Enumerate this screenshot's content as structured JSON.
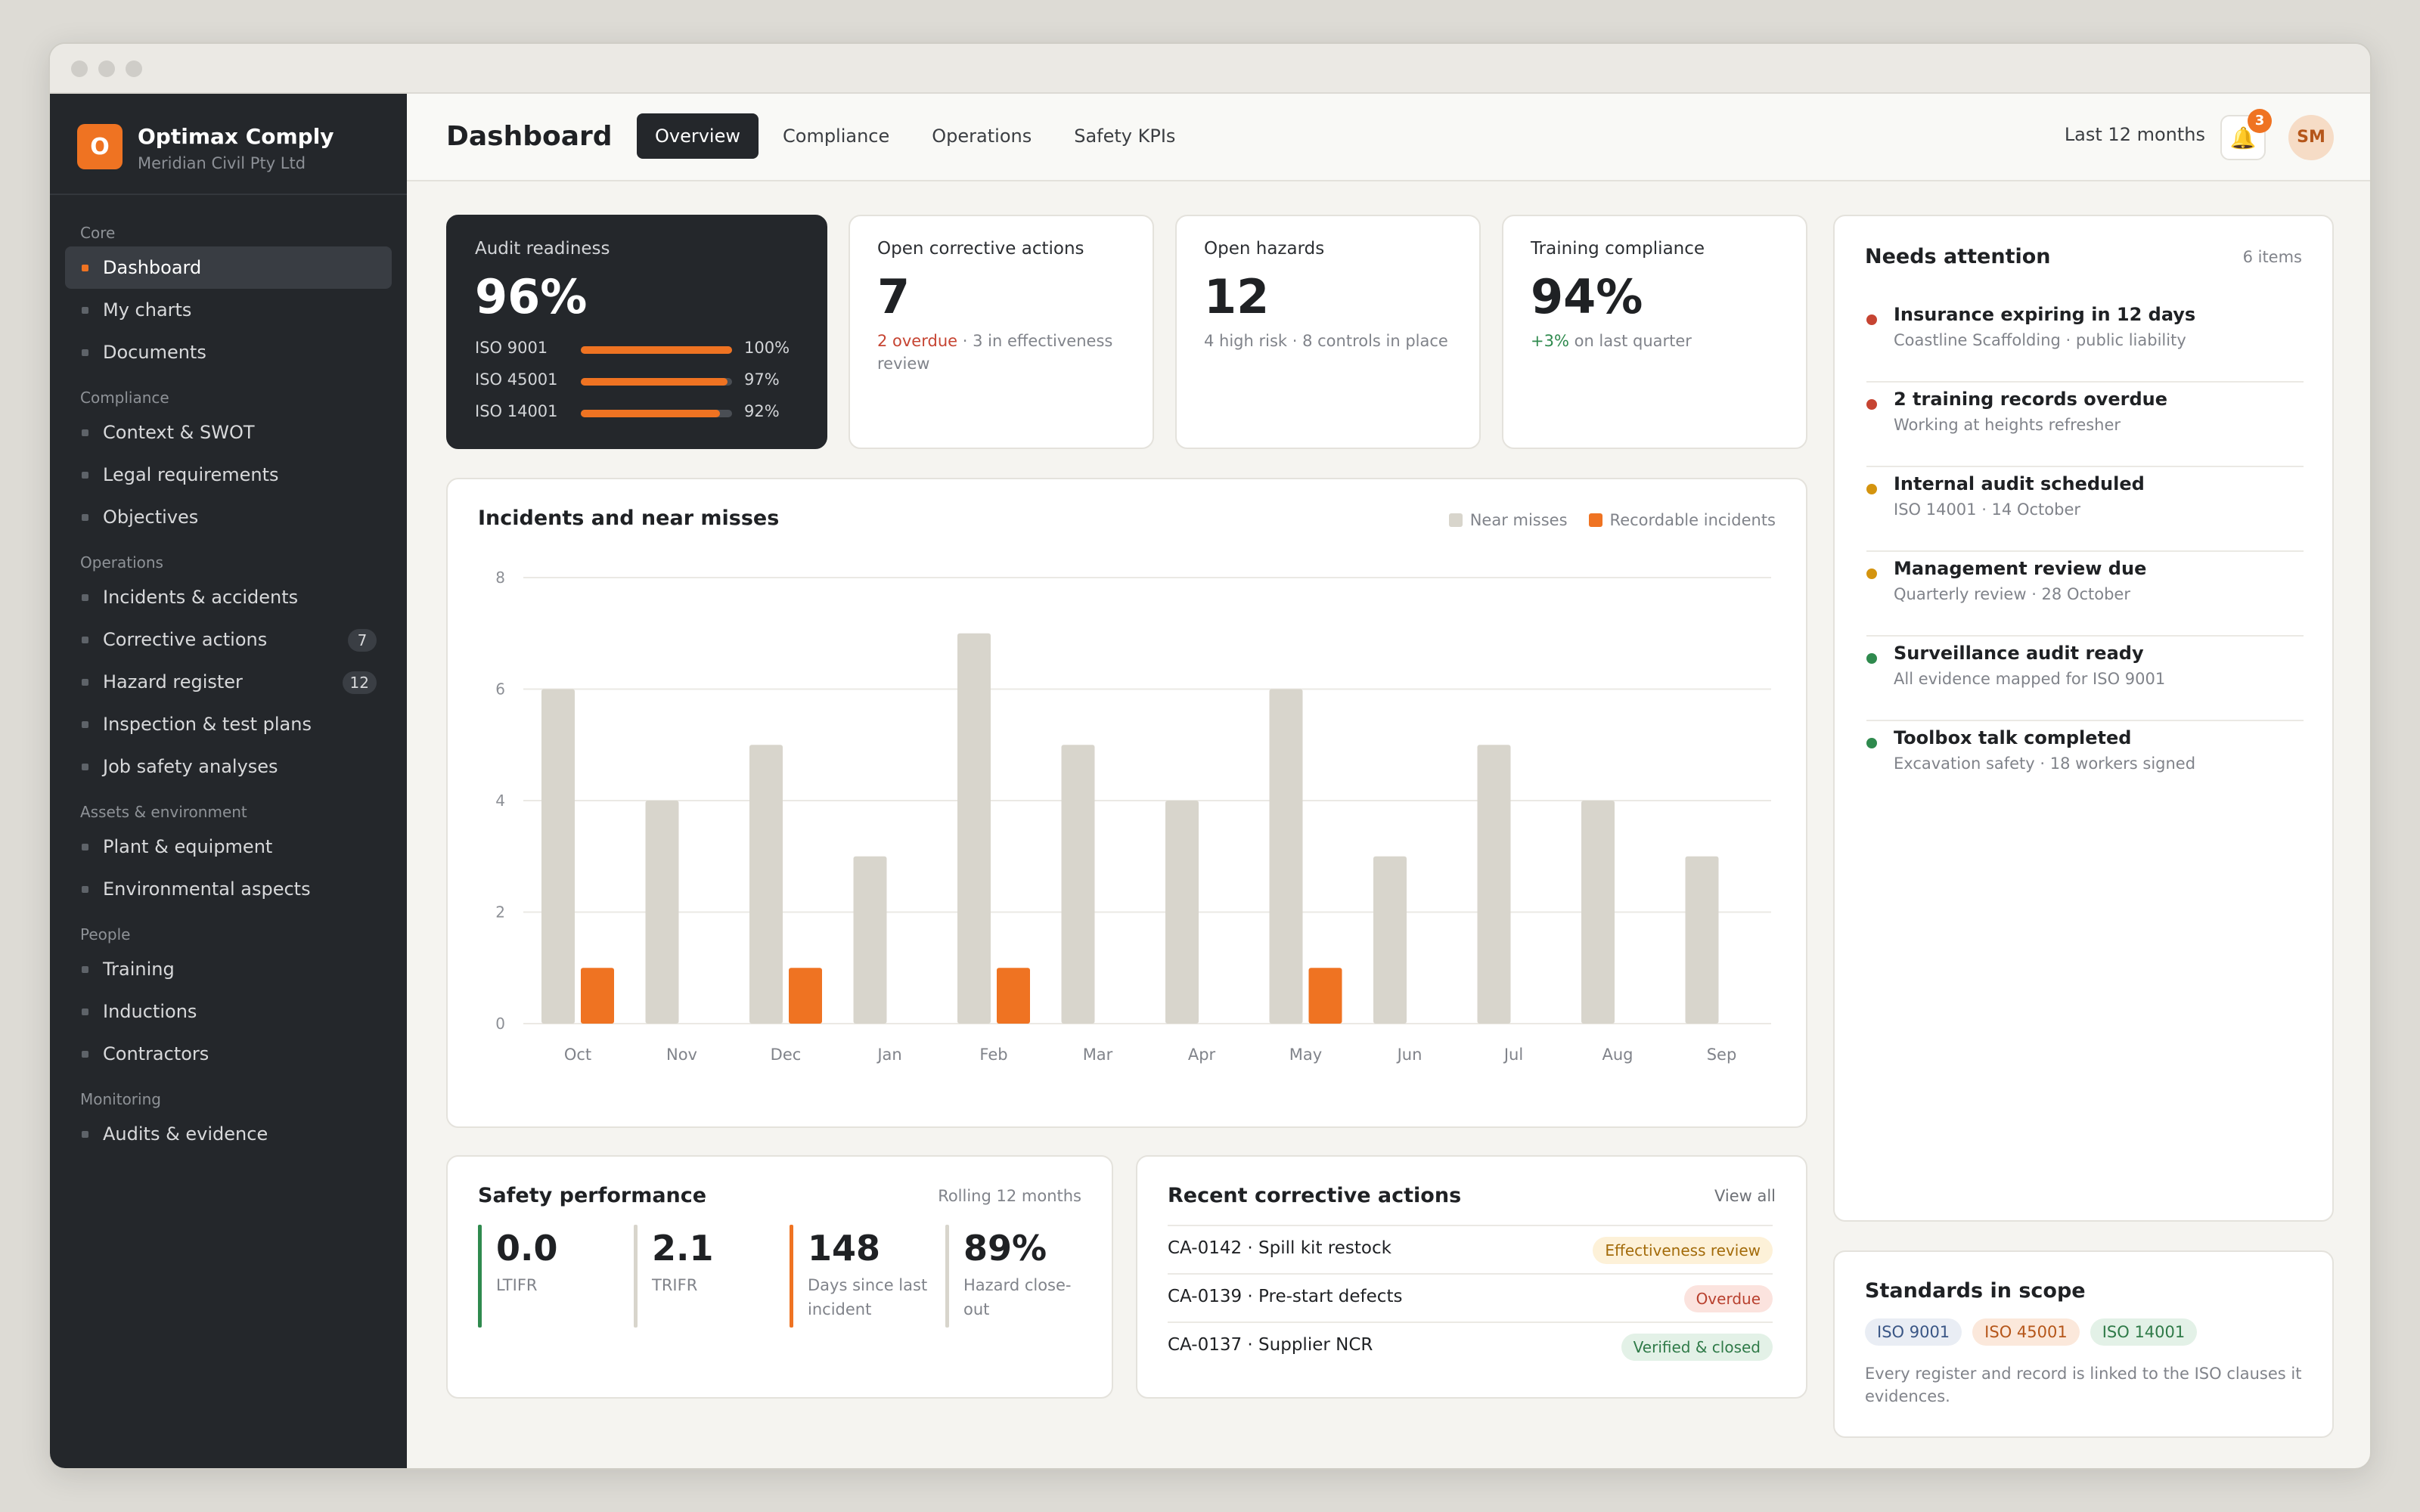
{
  "app": {
    "name": "Optimax Comply",
    "org": "Meridian Civil Pty Ltd",
    "logo_letter": "O"
  },
  "sidebar": {
    "sections": [
      {
        "title": "Core",
        "items": [
          {
            "label": "Dashboard",
            "active": true
          },
          {
            "label": "My charts"
          },
          {
            "label": "Documents"
          }
        ]
      },
      {
        "title": "Compliance",
        "items": [
          {
            "label": "Context & SWOT"
          },
          {
            "label": "Legal requirements"
          },
          {
            "label": "Objectives"
          }
        ]
      },
      {
        "title": "Operations",
        "items": [
          {
            "label": "Incidents & accidents"
          },
          {
            "label": "Corrective actions",
            "badge": "7"
          },
          {
            "label": "Hazard register",
            "badge": "12"
          },
          {
            "label": "Inspection & test plans"
          },
          {
            "label": "Job safety analyses"
          }
        ]
      },
      {
        "title": "Assets & environment",
        "items": [
          {
            "label": "Plant & equipment"
          },
          {
            "label": "Environmental aspects"
          }
        ]
      },
      {
        "title": "People",
        "items": [
          {
            "label": "Training"
          },
          {
            "label": "Inductions"
          },
          {
            "label": "Contractors"
          }
        ]
      },
      {
        "title": "Monitoring",
        "items": [
          {
            "label": "Audits & evidence"
          }
        ]
      }
    ]
  },
  "header": {
    "title": "Dashboard",
    "tabs": [
      "Overview",
      "Compliance",
      "Operations",
      "Safety KPIs"
    ],
    "active_tab": "Overview",
    "range": "Last 12 months",
    "notification_count": "3",
    "avatar_initials": "SM"
  },
  "kpis": {
    "audit": {
      "label": "Audit readiness",
      "value": "96%",
      "standards": [
        {
          "name": "ISO 9001",
          "pct": "100%",
          "fraction": 1.0
        },
        {
          "name": "ISO 45001",
          "pct": "97%",
          "fraction": 0.97
        },
        {
          "name": "ISO 14001",
          "pct": "92%",
          "fraction": 0.92
        }
      ]
    },
    "corrective": {
      "label": "Open corrective actions",
      "value": "7",
      "overdue": "2 overdue",
      "sub": " · 3 in effectiveness review"
    },
    "hazards": {
      "label": "Open hazards",
      "value": "12",
      "sub": "4 high risk · 8 controls in place"
    },
    "training": {
      "label": "Training compliance",
      "value": "94%",
      "delta": "+3%",
      "sub": " on last quarter"
    }
  },
  "incidents": {
    "title": "Incidents and near misses",
    "legend": {
      "near_misses": "Near misses",
      "recordable": "Recordable incidents"
    }
  },
  "chart_data": {
    "type": "bar",
    "categories": [
      "Oct",
      "Nov",
      "Dec",
      "Jan",
      "Feb",
      "Mar",
      "Apr",
      "May",
      "Jun",
      "Jul",
      "Aug",
      "Sep"
    ],
    "series": [
      {
        "name": "Near misses",
        "color": "#d8d5cc",
        "values": [
          6,
          4,
          5,
          3,
          7,
          5,
          4,
          6,
          3,
          5,
          4,
          3
        ]
      },
      {
        "name": "Recordable incidents",
        "color": "#ef7322",
        "values": [
          1,
          0,
          1,
          0,
          1,
          0,
          0,
          1,
          0,
          0,
          0,
          0
        ]
      }
    ],
    "ylim": [
      0,
      8
    ],
    "yticks": [
      0,
      2,
      4,
      6,
      8
    ],
    "grid": true,
    "legend": "top-right"
  },
  "attention": {
    "title": "Needs attention",
    "count": "6 items",
    "items": [
      {
        "title": "Insurance expiring in 12 days",
        "sub": "Coastline Scaffolding · public liability",
        "color": "#c64432"
      },
      {
        "title": "2 training records overdue",
        "sub": "Working at heights refresher",
        "color": "#c64432"
      },
      {
        "title": "Internal audit scheduled",
        "sub": "ISO 14001 · 14 October",
        "color": "#d4940f"
      },
      {
        "title": "Management review due",
        "sub": "Quarterly review · 28 October",
        "color": "#d4940f"
      },
      {
        "title": "Surveillance audit ready",
        "sub": "All evidence mapped for ISO 9001",
        "color": "#2f8a4e"
      },
      {
        "title": "Toolbox talk completed",
        "sub": "Excavation safety · 18 workers signed",
        "color": "#2f8a4e"
      }
    ]
  },
  "safety": {
    "title": "Safety performance",
    "meta": "Rolling 12 months",
    "metrics": [
      {
        "value": "0.0",
        "label": "LTIFR",
        "color": "#2f8a4e"
      },
      {
        "value": "2.1",
        "label": "TRIFR",
        "color": "#d8d5cc"
      },
      {
        "value": "148",
        "label": "Days since last incident",
        "color": "#ef7322"
      },
      {
        "value": "89%",
        "label": "Hazard close-out",
        "color": "#d8d5cc"
      }
    ]
  },
  "recent": {
    "title": "Recent corrective actions",
    "link": "View all",
    "rows": [
      {
        "text": "CA-0142 · Spill kit restock",
        "status": "Effectiveness review"
      },
      {
        "text": "CA-0139 · Pre-start defects",
        "status": "Overdue"
      },
      {
        "text": "CA-0137 · Supplier NCR",
        "status": "Verified & closed"
      }
    ]
  },
  "standards": {
    "title": "Standards in scope",
    "pills": [
      "ISO 9001",
      "ISO 45001",
      "ISO 14001"
    ],
    "text": "Every register and record is linked to the ISO clauses it evidences."
  }
}
